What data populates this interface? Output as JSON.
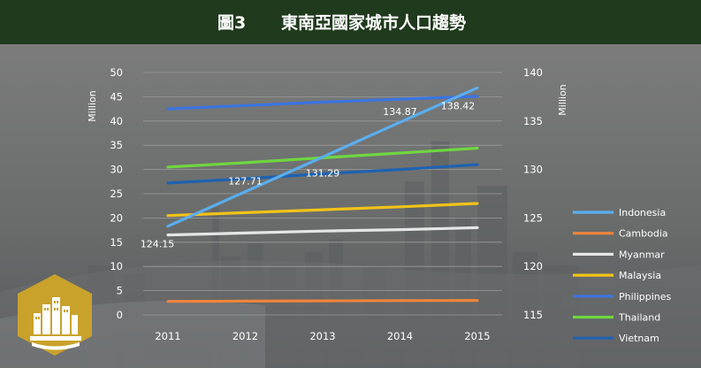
{
  "header": {
    "fig_no": "圖3",
    "title": "東南亞國家城市人口趨勢"
  },
  "colors": {
    "header_bg": "#1f3a1c",
    "badge": "#c9a22b"
  },
  "chart_data": {
    "type": "line",
    "title": "東南亞國家城市人口趨勢",
    "categories": [
      "2011",
      "2012",
      "2013",
      "2014",
      "2015"
    ],
    "left_axis": {
      "label": "Million",
      "ticks": [
        "0",
        "5",
        "10",
        "15",
        "20",
        "25",
        "30",
        "35",
        "40",
        "45",
        "50"
      ],
      "ylim": [
        0,
        50
      ]
    },
    "right_axis": {
      "label": "Million",
      "ticks": [
        "115",
        "120",
        "125",
        "130",
        "135",
        "140"
      ],
      "ylim": [
        115,
        140
      ]
    },
    "grid": true,
    "legend_position": "right",
    "series": [
      {
        "name": "Indonesia",
        "axis": "right",
        "color": "#5aaef0",
        "values": [
          124.15,
          127.71,
          131.29,
          134.87,
          138.42
        ],
        "labels": [
          "124.15",
          "127.71",
          "131.29",
          "134.87",
          "138.42"
        ]
      },
      {
        "name": "Cambodia",
        "axis": "left",
        "color": "#f0843c",
        "values": [
          2.8,
          2.85,
          2.9,
          2.95,
          3.0
        ]
      },
      {
        "name": "Myanmar",
        "axis": "left",
        "color": "#e6e6e6",
        "values": [
          16.5,
          16.9,
          17.3,
          17.6,
          18.0
        ]
      },
      {
        "name": "Malaysia",
        "axis": "left",
        "color": "#f2c318",
        "values": [
          20.5,
          21.1,
          21.7,
          22.3,
          23.0
        ]
      },
      {
        "name": "Philippines",
        "axis": "left",
        "color": "#3b74e0",
        "values": [
          42.5,
          43.2,
          43.9,
          44.5,
          45.1
        ]
      },
      {
        "name": "Thailand",
        "axis": "left",
        "color": "#6fd640",
        "values": [
          30.5,
          31.4,
          32.4,
          33.4,
          34.4
        ]
      },
      {
        "name": "Vietnam",
        "axis": "left",
        "color": "#1f62b0",
        "values": [
          27.2,
          28.1,
          29.1,
          30.0,
          31.0
        ]
      }
    ]
  }
}
